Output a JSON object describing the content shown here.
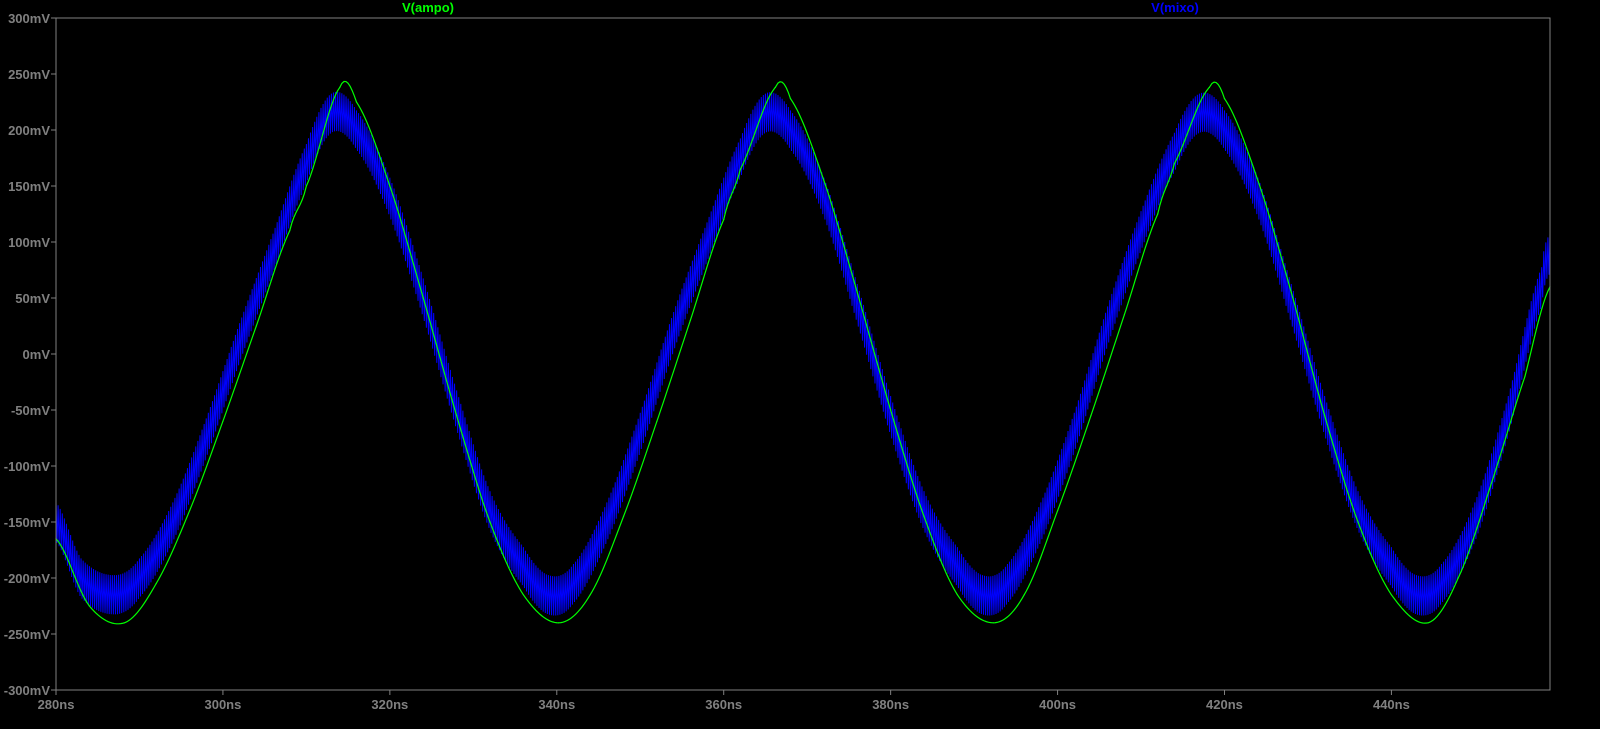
{
  "chart_data": {
    "type": "line",
    "title": "",
    "xlabel": "",
    "ylabel": "",
    "xlim": [
      280,
      459
    ],
    "ylim": [
      -300,
      300
    ],
    "x_unit": "ns",
    "y_unit": "mV",
    "x_ticks": [
      280,
      300,
      320,
      340,
      360,
      380,
      400,
      420,
      440
    ],
    "x_tick_labels": [
      "280ns",
      "300ns",
      "320ns",
      "340ns",
      "360ns",
      "380ns",
      "400ns",
      "420ns",
      "440ns"
    ],
    "y_ticks": [
      300,
      250,
      200,
      150,
      100,
      50,
      0,
      -50,
      -100,
      -150,
      -200,
      -250,
      -300
    ],
    "y_tick_labels": [
      "300mV",
      "250mV",
      "200mV",
      "150mV",
      "100mV",
      "50mV",
      "0mV",
      "-50mV",
      "-100mV",
      "-150mV",
      "-200mV",
      "-250mV",
      "-300mV"
    ],
    "grid": false,
    "background": "#000000",
    "axis_color": "#808080",
    "legend_placement": "top",
    "series": [
      {
        "name": "V(ampo)",
        "color": "#00ff00",
        "values_x": [
          280,
          284,
          288.2,
          292,
          296,
          300,
          304,
          308,
          310,
          314,
          316,
          320,
          324,
          328,
          332,
          336,
          340.2,
          344,
          348,
          352,
          356,
          360,
          362,
          366.2,
          368,
          372,
          376,
          380,
          384,
          388,
          392.3,
          396,
          400,
          404,
          408,
          412,
          414,
          418.2,
          420,
          424,
          428,
          432,
          436,
          440,
          444.4,
          448,
          452,
          456,
          459
        ],
        "values_y": [
          -165,
          -225,
          -240,
          -205,
          -140,
          -60,
          25,
          110,
          150,
          238,
          225,
          150,
          50,
          -55,
          -150,
          -215,
          -240,
          -215,
          -145,
          -60,
          30,
          120,
          165,
          238,
          228,
          155,
          55,
          -50,
          -145,
          -215,
          -240,
          -215,
          -140,
          -55,
          35,
          125,
          170,
          238,
          228,
          155,
          55,
          -55,
          -150,
          -215,
          -240,
          -200,
          -115,
          -20,
          60
        ]
      },
      {
        "name": "V(mixo)",
        "color": "#0000ff",
        "values_x": [
          280,
          283,
          287,
          290,
          294,
          298,
          302,
          306,
          310,
          313,
          316,
          320,
          324,
          328,
          332,
          336,
          339,
          342,
          346,
          350,
          354,
          358,
          362,
          365,
          368,
          372,
          376,
          380,
          384,
          388,
          391,
          394,
          398,
          402,
          406,
          410,
          414,
          417,
          420,
          424,
          428,
          432,
          436,
          440,
          443,
          446,
          450,
          454,
          458,
          459
        ],
        "values_y": [
          -150,
          -200,
          -215,
          -200,
          -150,
          -75,
          10,
          90,
          170,
          215,
          200,
          140,
          50,
          -50,
          -140,
          -190,
          -215,
          -205,
          -150,
          -70,
          20,
          100,
          175,
          215,
          200,
          140,
          45,
          -55,
          -140,
          -190,
          -215,
          -205,
          -150,
          -70,
          25,
          110,
          180,
          215,
          200,
          140,
          45,
          -55,
          -140,
          -190,
          -215,
          -205,
          -150,
          -55,
          60,
          90
        ],
        "ripple_peak_to_peak_mV": 35,
        "ripple_period_ns": 0.25
      }
    ]
  }
}
